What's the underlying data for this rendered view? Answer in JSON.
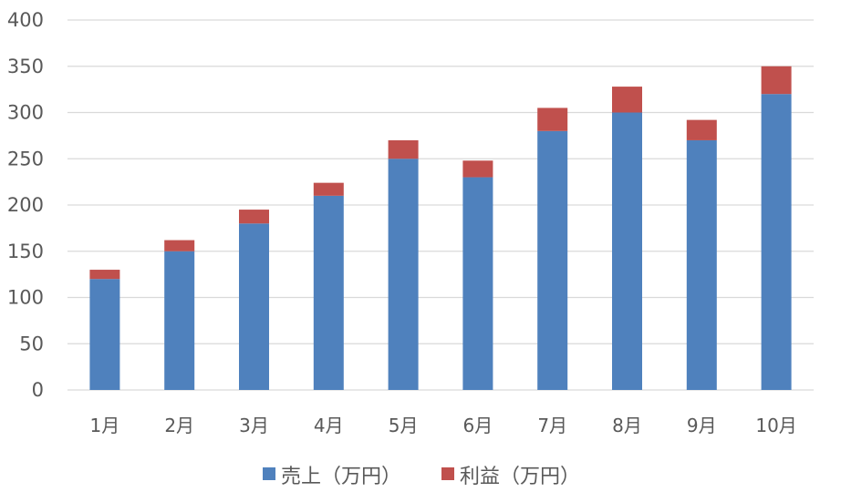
{
  "chart_data": {
    "type": "bar",
    "stacked": true,
    "categories": [
      "1月",
      "2月",
      "3月",
      "4月",
      "5月",
      "6月",
      "7月",
      "8月",
      "9月",
      "10月"
    ],
    "series": [
      {
        "name": "売上（万円）",
        "color": "#4f81bd",
        "values": [
          120,
          150,
          180,
          210,
          250,
          230,
          280,
          300,
          270,
          320
        ]
      },
      {
        "name": "利益（万円）",
        "color": "#c0504d",
        "values": [
          10,
          12,
          15,
          14,
          20,
          18,
          25,
          28,
          22,
          30
        ]
      }
    ],
    "title": "",
    "xlabel": "",
    "ylabel": "",
    "ylim": [
      0,
      400
    ],
    "yticks": [
      0,
      50,
      100,
      150,
      200,
      250,
      300,
      350,
      400
    ],
    "grid": true,
    "legend": "bottom"
  }
}
